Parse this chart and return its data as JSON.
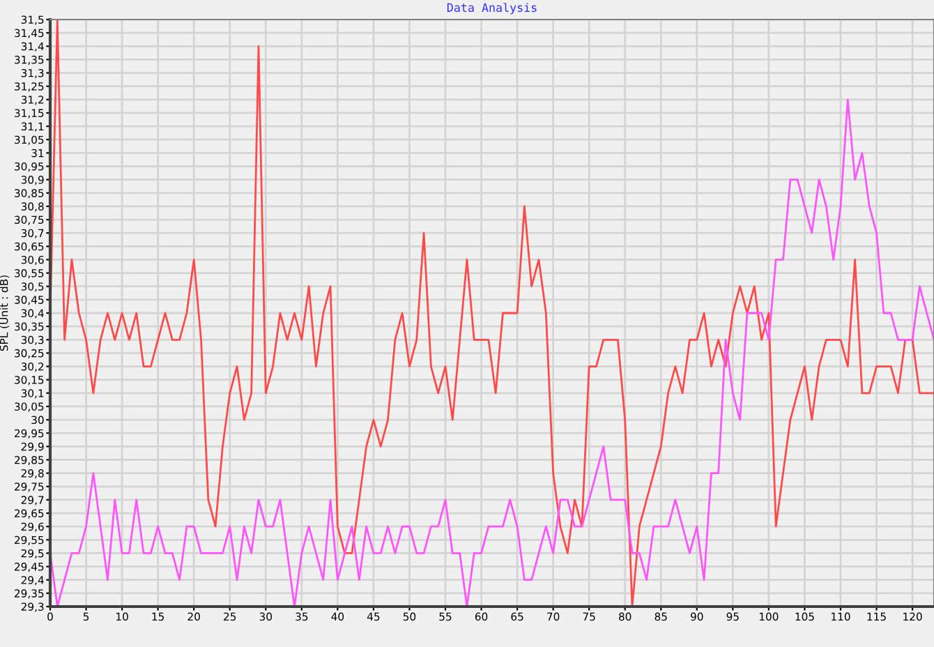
{
  "chart_data": {
    "type": "line",
    "title": "Data Analysis",
    "ylabel": "SPL (Unit : dB)",
    "x": [
      0,
      1,
      2,
      3,
      4,
      5,
      6,
      7,
      8,
      9,
      10,
      11,
      12,
      13,
      14,
      15,
      16,
      17,
      18,
      19,
      20,
      21,
      22,
      23,
      24,
      25,
      26,
      27,
      28,
      29,
      30,
      31,
      32,
      33,
      34,
      35,
      36,
      37,
      38,
      39,
      40,
      41,
      42,
      43,
      44,
      45,
      46,
      47,
      48,
      49,
      50,
      51,
      52,
      53,
      54,
      55,
      56,
      57,
      58,
      59,
      60,
      61,
      62,
      63,
      64,
      65,
      66,
      67,
      68,
      69,
      70,
      71,
      72,
      73,
      74,
      75,
      76,
      77,
      78,
      79,
      80,
      81,
      82,
      83,
      84,
      85,
      86,
      87,
      88,
      89,
      90,
      91,
      92,
      93,
      94,
      95,
      96,
      97,
      98,
      99,
      100,
      101,
      102,
      103,
      104,
      105,
      106,
      107,
      108,
      109,
      110,
      111,
      112,
      113,
      114,
      115,
      116,
      117,
      118,
      119,
      120,
      121,
      122,
      123
    ],
    "series": [
      {
        "color": "#ff4a4a",
        "values": [
          30.4,
          31.5,
          30.3,
          30.6,
          30.4,
          30.3,
          30.1,
          30.3,
          30.4,
          30.3,
          30.4,
          30.3,
          30.4,
          30.2,
          30.2,
          30.3,
          30.4,
          30.3,
          30.3,
          30.4,
          30.6,
          30.3,
          29.7,
          29.6,
          29.9,
          30.1,
          30.2,
          30.0,
          30.1,
          31.4,
          30.1,
          30.2,
          30.4,
          30.3,
          30.4,
          30.3,
          30.5,
          30.2,
          30.4,
          30.5,
          29.6,
          29.5,
          29.5,
          29.7,
          29.9,
          30.0,
          29.9,
          30.0,
          30.3,
          30.4,
          30.2,
          30.3,
          30.7,
          30.2,
          30.1,
          30.2,
          30.0,
          30.3,
          30.6,
          30.3,
          30.3,
          30.3,
          30.1,
          30.4,
          30.4,
          30.4,
          30.8,
          30.5,
          30.6,
          30.4,
          29.8,
          29.6,
          29.5,
          29.7,
          29.6,
          30.2,
          30.2,
          30.3,
          30.3,
          30.3,
          30.0,
          29.3,
          29.6,
          29.7,
          29.8,
          29.9,
          30.1,
          30.2,
          30.1,
          30.3,
          30.3,
          30.4,
          30.2,
          30.3,
          30.2,
          30.4,
          30.5,
          30.4,
          30.5,
          30.3,
          30.4,
          29.6,
          29.8,
          30.0,
          30.1,
          30.2,
          30.0,
          30.2,
          30.3,
          30.3,
          30.3,
          30.2,
          30.6,
          30.1,
          30.1,
          30.2,
          30.2,
          30.2,
          30.1,
          30.3,
          30.3,
          30.1,
          30.1,
          30.1
        ]
      },
      {
        "color": "#ff55ff",
        "values": [
          29.5,
          29.3,
          29.4,
          29.5,
          29.5,
          29.6,
          29.8,
          29.6,
          29.4,
          29.7,
          29.5,
          29.5,
          29.7,
          29.5,
          29.5,
          29.6,
          29.5,
          29.5,
          29.4,
          29.6,
          29.6,
          29.5,
          29.5,
          29.5,
          29.5,
          29.6,
          29.4,
          29.6,
          29.5,
          29.7,
          29.6,
          29.6,
          29.7,
          29.5,
          29.3,
          29.5,
          29.6,
          29.5,
          29.4,
          29.7,
          29.4,
          29.5,
          29.6,
          29.4,
          29.6,
          29.5,
          29.5,
          29.6,
          29.5,
          29.6,
          29.6,
          29.5,
          29.5,
          29.6,
          29.6,
          29.7,
          29.5,
          29.5,
          29.3,
          29.5,
          29.5,
          29.6,
          29.6,
          29.6,
          29.7,
          29.6,
          29.4,
          29.4,
          29.5,
          29.6,
          29.5,
          29.7,
          29.7,
          29.6,
          29.6,
          29.7,
          29.8,
          29.9,
          29.7,
          29.7,
          29.7,
          29.5,
          29.5,
          29.4,
          29.6,
          29.6,
          29.6,
          29.7,
          29.6,
          29.5,
          29.6,
          29.4,
          29.8,
          29.8,
          30.3,
          30.1,
          30.0,
          30.4,
          30.4,
          30.4,
          30.3,
          30.6,
          30.6,
          30.9,
          30.9,
          30.8,
          30.7,
          30.9,
          30.8,
          30.6,
          30.8,
          31.2,
          30.9,
          31.0,
          30.8,
          30.7,
          30.4,
          30.4,
          30.3,
          30.3,
          30.3,
          30.5,
          30.4,
          30.3
        ]
      }
    ],
    "xlim": [
      0,
      123
    ],
    "xticks": [
      0,
      5,
      10,
      15,
      20,
      25,
      30,
      35,
      40,
      45,
      50,
      55,
      60,
      65,
      70,
      75,
      80,
      85,
      90,
      95,
      100,
      105,
      110,
      115,
      120
    ],
    "ylim": [
      29.3,
      31.5
    ],
    "yticks": [
      {
        "value": 29.3,
        "label": "29,3"
      },
      {
        "value": 29.35,
        "label": "29,35"
      },
      {
        "value": 29.4,
        "label": "29,4"
      },
      {
        "value": 29.45,
        "label": "29,45"
      },
      {
        "value": 29.5,
        "label": "29,5"
      },
      {
        "value": 29.55,
        "label": "29,55"
      },
      {
        "value": 29.6,
        "label": "29,6"
      },
      {
        "value": 29.65,
        "label": "29,65"
      },
      {
        "value": 29.7,
        "label": "29,7"
      },
      {
        "value": 29.75,
        "label": "29,75"
      },
      {
        "value": 29.8,
        "label": "29,8"
      },
      {
        "value": 29.85,
        "label": "29,85"
      },
      {
        "value": 29.9,
        "label": "29,9"
      },
      {
        "value": 29.95,
        "label": "29,95"
      },
      {
        "value": 30,
        "label": "30"
      },
      {
        "value": 30.05,
        "label": "30,05"
      },
      {
        "value": 30.1,
        "label": "30,1"
      },
      {
        "value": 30.15,
        "label": "30,15"
      },
      {
        "value": 30.2,
        "label": "30,2"
      },
      {
        "value": 30.25,
        "label": "30,25"
      },
      {
        "value": 30.3,
        "label": "30,3"
      },
      {
        "value": 30.35,
        "label": "30,35"
      },
      {
        "value": 30.4,
        "label": "30,4"
      },
      {
        "value": 30.45,
        "label": "30,45"
      },
      {
        "value": 30.5,
        "label": "30,5"
      },
      {
        "value": 30.55,
        "label": "30,55"
      },
      {
        "value": 30.6,
        "label": "30,6"
      },
      {
        "value": 30.65,
        "label": "30,65"
      },
      {
        "value": 30.7,
        "label": "30,7"
      },
      {
        "value": 30.75,
        "label": "30,75"
      },
      {
        "value": 30.8,
        "label": "30,8"
      },
      {
        "value": 30.85,
        "label": "30,85"
      },
      {
        "value": 30.9,
        "label": "30,9"
      },
      {
        "value": 30.95,
        "label": "30,95"
      },
      {
        "value": 31,
        "label": "31"
      },
      {
        "value": 31.05,
        "label": "31,05"
      },
      {
        "value": 31.1,
        "label": "31,1"
      },
      {
        "value": 31.15,
        "label": "31,15"
      },
      {
        "value": 31.2,
        "label": "31,2"
      },
      {
        "value": 31.25,
        "label": "31,25"
      },
      {
        "value": 31.3,
        "label": "31,3"
      },
      {
        "value": 31.35,
        "label": "31,35"
      },
      {
        "value": 31.4,
        "label": "31,4"
      },
      {
        "value": 31.45,
        "label": "31,45"
      },
      {
        "value": 31.5,
        "label": "31,5"
      }
    ],
    "grid": true,
    "marker": "none",
    "line_style": "solid"
  }
}
